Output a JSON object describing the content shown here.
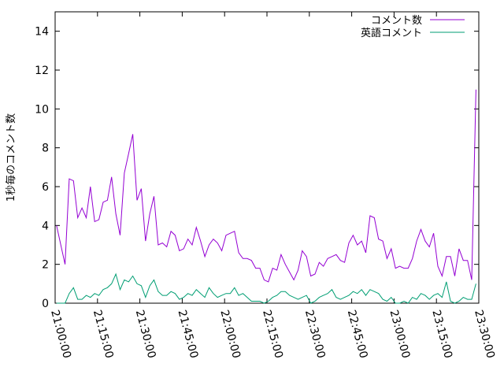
{
  "chart_data": {
    "type": "line",
    "title": "",
    "xlabel": "",
    "ylabel": "1秒毎のコメント数",
    "x_ticks": [
      "21:00:00",
      "21:15:00",
      "21:30:00",
      "21:45:00",
      "22:00:00",
      "22:15:00",
      "22:30:00",
      "22:45:00",
      "23:00:00",
      "23:15:00",
      "23:30:00"
    ],
    "y_ticks": [
      "0",
      "2",
      "4",
      "6",
      "8",
      "10",
      "12",
      "14"
    ],
    "ylim": [
      0,
      15
    ],
    "xlim_minutes": [
      0,
      150
    ],
    "legend_position": "top-right",
    "grid": false,
    "series": [
      {
        "name": "コメント数",
        "color": "#9400d3",
        "points": [
          [
            0.5,
            4.0
          ],
          [
            2,
            3.0
          ],
          [
            3.5,
            2.0
          ],
          [
            5,
            6.4
          ],
          [
            6.5,
            6.3
          ],
          [
            8,
            4.4
          ],
          [
            9.5,
            4.9
          ],
          [
            11,
            4.4
          ],
          [
            12.5,
            6.0
          ],
          [
            14,
            4.2
          ],
          [
            15.5,
            4.3
          ],
          [
            17,
            5.2
          ],
          [
            18.5,
            5.3
          ],
          [
            20,
            6.5
          ],
          [
            21.5,
            4.6
          ],
          [
            23,
            3.5
          ],
          [
            24.5,
            6.7
          ],
          [
            26,
            7.7
          ],
          [
            27.5,
            8.7
          ],
          [
            29,
            5.3
          ],
          [
            30.5,
            5.9
          ],
          [
            32,
            3.2
          ],
          [
            33.5,
            4.6
          ],
          [
            35,
            5.5
          ],
          [
            36.5,
            3.0
          ],
          [
            38,
            3.1
          ],
          [
            39.5,
            2.9
          ],
          [
            41,
            3.7
          ],
          [
            42.5,
            3.5
          ],
          [
            44,
            2.7
          ],
          [
            45.5,
            2.8
          ],
          [
            47,
            3.3
          ],
          [
            48.5,
            3.0
          ],
          [
            50,
            3.9
          ],
          [
            51.5,
            3.2
          ],
          [
            53,
            2.4
          ],
          [
            54.5,
            3.0
          ],
          [
            56,
            3.3
          ],
          [
            57.5,
            3.1
          ],
          [
            59,
            2.7
          ],
          [
            60.5,
            3.5
          ],
          [
            62,
            3.6
          ],
          [
            63.5,
            3.7
          ],
          [
            65,
            2.6
          ],
          [
            66.5,
            2.3
          ],
          [
            68,
            2.3
          ],
          [
            69.5,
            2.2
          ],
          [
            71,
            1.8
          ],
          [
            72.5,
            1.8
          ],
          [
            74,
            1.2
          ],
          [
            75.5,
            1.1
          ],
          [
            77,
            1.8
          ],
          [
            78.5,
            1.7
          ],
          [
            80,
            2.5
          ],
          [
            81.5,
            2.0
          ],
          [
            83,
            1.6
          ],
          [
            84.5,
            1.2
          ],
          [
            86,
            1.7
          ],
          [
            87.5,
            2.7
          ],
          [
            89,
            2.4
          ],
          [
            90.5,
            1.4
          ],
          [
            92,
            1.5
          ],
          [
            93.5,
            2.1
          ],
          [
            95,
            1.9
          ],
          [
            96.5,
            2.3
          ],
          [
            98,
            2.4
          ],
          [
            99.5,
            2.5
          ],
          [
            101,
            2.2
          ],
          [
            102.5,
            2.1
          ],
          [
            104,
            3.1
          ],
          [
            105.5,
            3.5
          ],
          [
            107,
            3.0
          ],
          [
            108.5,
            3.2
          ],
          [
            110,
            2.6
          ],
          [
            111.5,
            4.5
          ],
          [
            113,
            4.4
          ],
          [
            114.5,
            3.3
          ],
          [
            116,
            3.2
          ],
          [
            117.5,
            2.3
          ],
          [
            119,
            2.8
          ],
          [
            120.5,
            1.8
          ],
          [
            122,
            1.9
          ],
          [
            123.5,
            1.8
          ],
          [
            125,
            1.8
          ],
          [
            126.5,
            2.3
          ],
          [
            128,
            3.2
          ],
          [
            129.5,
            3.8
          ],
          [
            131,
            3.2
          ],
          [
            132.5,
            2.9
          ],
          [
            134,
            3.6
          ],
          [
            135.5,
            1.9
          ],
          [
            137,
            1.4
          ],
          [
            138.5,
            2.4
          ],
          [
            140,
            2.4
          ],
          [
            141.5,
            1.4
          ],
          [
            143,
            2.8
          ],
          [
            144.5,
            2.2
          ],
          [
            146,
            2.2
          ],
          [
            147.5,
            1.2
          ],
          [
            149,
            11.0
          ]
        ]
      },
      {
        "name": "英語コメント",
        "color": "#009e73",
        "points": [
          [
            0.5,
            0.0
          ],
          [
            2,
            0.0
          ],
          [
            3.5,
            0.0
          ],
          [
            5,
            0.5
          ],
          [
            6.5,
            0.8
          ],
          [
            8,
            0.2
          ],
          [
            9.5,
            0.2
          ],
          [
            11,
            0.4
          ],
          [
            12.5,
            0.3
          ],
          [
            14,
            0.5
          ],
          [
            15.5,
            0.4
          ],
          [
            17,
            0.7
          ],
          [
            18.5,
            0.8
          ],
          [
            20,
            1.0
          ],
          [
            21.5,
            1.5
          ],
          [
            23,
            0.7
          ],
          [
            24.5,
            1.2
          ],
          [
            26,
            1.1
          ],
          [
            27.5,
            1.4
          ],
          [
            29,
            1.0
          ],
          [
            30.5,
            0.9
          ],
          [
            32,
            0.3
          ],
          [
            33.5,
            0.9
          ],
          [
            35,
            1.2
          ],
          [
            36.5,
            0.6
          ],
          [
            38,
            0.4
          ],
          [
            39.5,
            0.4
          ],
          [
            41,
            0.6
          ],
          [
            42.5,
            0.5
          ],
          [
            44,
            0.2
          ],
          [
            45.5,
            0.3
          ],
          [
            47,
            0.5
          ],
          [
            48.5,
            0.4
          ],
          [
            50,
            0.7
          ],
          [
            51.5,
            0.5
          ],
          [
            53,
            0.3
          ],
          [
            54.5,
            0.8
          ],
          [
            56,
            0.5
          ],
          [
            57.5,
            0.3
          ],
          [
            59,
            0.4
          ],
          [
            60.5,
            0.5
          ],
          [
            62,
            0.5
          ],
          [
            63.5,
            0.8
          ],
          [
            65,
            0.4
          ],
          [
            66.5,
            0.5
          ],
          [
            68,
            0.3
          ],
          [
            69.5,
            0.1
          ],
          [
            71,
            0.1
          ],
          [
            72.5,
            0.1
          ],
          [
            74,
            0.0
          ],
          [
            75.5,
            0.1
          ],
          [
            77,
            0.3
          ],
          [
            78.5,
            0.4
          ],
          [
            80,
            0.6
          ],
          [
            81.5,
            0.6
          ],
          [
            83,
            0.4
          ],
          [
            84.5,
            0.3
          ],
          [
            86,
            0.2
          ],
          [
            87.5,
            0.3
          ],
          [
            89,
            0.4
          ],
          [
            90.5,
            0.0
          ],
          [
            92,
            0.1
          ],
          [
            93.5,
            0.3
          ],
          [
            95,
            0.4
          ],
          [
            96.5,
            0.5
          ],
          [
            98,
            0.7
          ],
          [
            99.5,
            0.3
          ],
          [
            101,
            0.2
          ],
          [
            102.5,
            0.3
          ],
          [
            104,
            0.4
          ],
          [
            105.5,
            0.6
          ],
          [
            107,
            0.5
          ],
          [
            108.5,
            0.7
          ],
          [
            110,
            0.4
          ],
          [
            111.5,
            0.7
          ],
          [
            113,
            0.6
          ],
          [
            114.5,
            0.5
          ],
          [
            116,
            0.2
          ],
          [
            117.5,
            0.1
          ],
          [
            119,
            0.3
          ],
          [
            120.5,
            0.0
          ],
          [
            122,
            0.0
          ],
          [
            123.5,
            0.1
          ],
          [
            125,
            0.0
          ],
          [
            126.5,
            0.3
          ],
          [
            128,
            0.2
          ],
          [
            129.5,
            0.5
          ],
          [
            131,
            0.4
          ],
          [
            132.5,
            0.2
          ],
          [
            134,
            0.4
          ],
          [
            135.5,
            0.5
          ],
          [
            137,
            0.3
          ],
          [
            138.5,
            1.1
          ],
          [
            140,
            0.1
          ],
          [
            141.5,
            0.0
          ],
          [
            143,
            0.1
          ],
          [
            144.5,
            0.3
          ],
          [
            146,
            0.2
          ],
          [
            147.5,
            0.2
          ],
          [
            149,
            1.0
          ]
        ]
      }
    ]
  }
}
